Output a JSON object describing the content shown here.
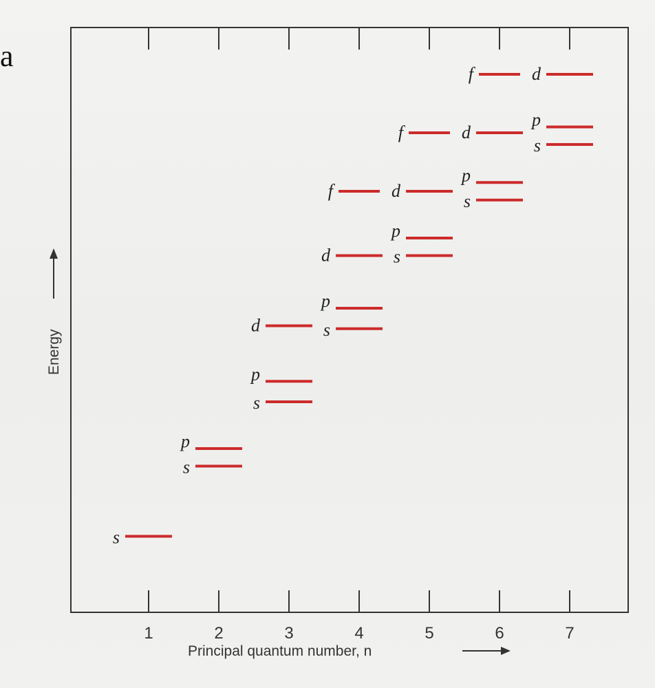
{
  "page_edge_letter": "a",
  "chart_data": {
    "type": "energy-level-diagram",
    "xlabel": "Principal quantum number, n",
    "ylabel": "Energy",
    "x_ticks": [
      1,
      2,
      3,
      4,
      5,
      6,
      7
    ],
    "y_range": [
      0,
      100
    ],
    "levels": [
      {
        "n": 1,
        "subshell": "s",
        "energy": 13
      },
      {
        "n": 2,
        "subshell": "s",
        "energy": 25
      },
      {
        "n": 2,
        "subshell": "p",
        "energy": 28
      },
      {
        "n": 3,
        "subshell": "s",
        "energy": 36
      },
      {
        "n": 3,
        "subshell": "p",
        "energy": 39.5
      },
      {
        "n": 3,
        "subshell": "d",
        "energy": 49
      },
      {
        "n": 4,
        "subshell": "s",
        "energy": 48.5
      },
      {
        "n": 4,
        "subshell": "p",
        "energy": 52
      },
      {
        "n": 4,
        "subshell": "d",
        "energy": 61
      },
      {
        "n": 4,
        "subshell": "f",
        "energy": 72
      },
      {
        "n": 5,
        "subshell": "s",
        "energy": 61
      },
      {
        "n": 5,
        "subshell": "p",
        "energy": 64
      },
      {
        "n": 5,
        "subshell": "d",
        "energy": 72
      },
      {
        "n": 5,
        "subshell": "f",
        "energy": 82
      },
      {
        "n": 6,
        "subshell": "s",
        "energy": 70.5
      },
      {
        "n": 6,
        "subshell": "p",
        "energy": 73.5
      },
      {
        "n": 6,
        "subshell": "d",
        "energy": 82
      },
      {
        "n": 6,
        "subshell": "f",
        "energy": 92
      },
      {
        "n": 7,
        "subshell": "s",
        "energy": 80
      },
      {
        "n": 7,
        "subshell": "p",
        "energy": 83
      },
      {
        "n": 7,
        "subshell": "d",
        "energy": 92
      }
    ],
    "grid": false,
    "level_color": "#cc2b2b",
    "axis_color": "#333333"
  }
}
